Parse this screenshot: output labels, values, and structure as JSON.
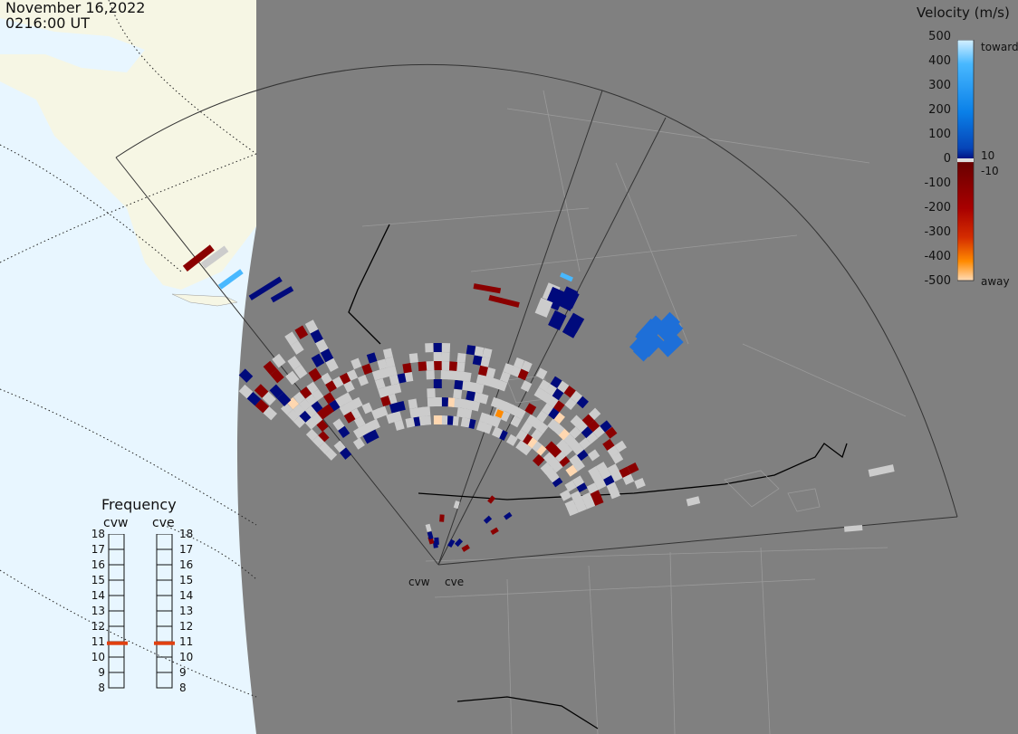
{
  "header": {
    "date": "November 16,2022",
    "time": "0216:00 UT"
  },
  "colorbar": {
    "title": "Velocity (m/s)",
    "ticks": [
      "500",
      "400",
      "300",
      "200",
      "100",
      "10",
      "0",
      "-10",
      "-100",
      "-200",
      "-300",
      "-400",
      "-500"
    ],
    "toward_label": "toward",
    "away_label": "away",
    "colors": [
      "#cfeeff",
      "#48b8ff",
      "#0a80e8",
      "#0645b8",
      "#000a7c",
      "#6a0000",
      "#a80000",
      "#d42c00",
      "#ff7a00",
      "#ffd7b0"
    ]
  },
  "frequency": {
    "title": "Frequency",
    "radars": [
      "cvw",
      "cve"
    ],
    "scale": [
      "18",
      "17",
      "16",
      "15",
      "14",
      "13",
      "12",
      "11",
      "10",
      "9",
      "8"
    ],
    "values_mhz": [
      10.9,
      10.9
    ],
    "marker_color": "#e04010"
  },
  "radars": {
    "west_label": "cvw",
    "east_label": "cve"
  },
  "map": {
    "land_color": "#808080",
    "ocean_color": "#e8f6ff",
    "alaska_color": "#f6f6e4",
    "scatter_gray": "#cccccc"
  }
}
